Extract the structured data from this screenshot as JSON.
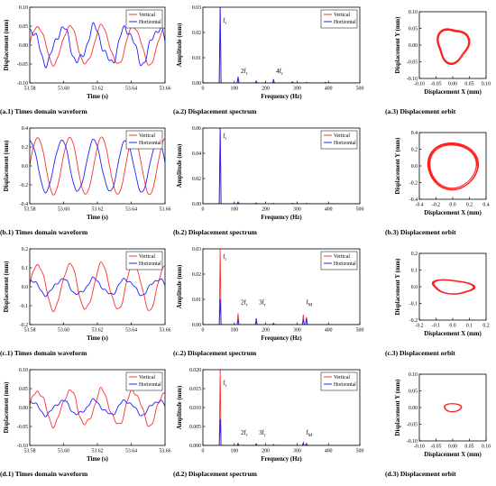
{
  "colors": {
    "vertical": "#ff3030",
    "horizontal": "#2020ff",
    "orbit": "#ff2020",
    "axis": "#000000"
  },
  "legend": {
    "vertical": "Vertical",
    "horizontal": "Horizontal"
  },
  "chart_data": [
    {
      "id": "a1",
      "type": "line",
      "caption": "(a.1) Times domain waveform",
      "xlabel": "Time (s)",
      "ylabel": "Displacement (mm)",
      "xlim": [
        53.58,
        53.66
      ],
      "ylim": [
        -0.1,
        0.1
      ],
      "xticks": [
        "53.58",
        "53.60",
        "53.62",
        "53.64",
        "53.66"
      ],
      "yticks": [
        "-0.10",
        "-0.05",
        "0.00",
        "0.05",
        "0.10"
      ],
      "period": 0.0189,
      "legend_pos": "top-right",
      "series": [
        {
          "name": "Vertical",
          "amplitude": 0.05,
          "phase": 0.0,
          "wobble": 0.004
        },
        {
          "name": "Horizontal",
          "amplitude": 0.045,
          "phase": 1.45,
          "wobble": 0.01
        }
      ]
    },
    {
      "id": "a2",
      "type": "spectrum",
      "caption": "(a.2) Displacement spectrum",
      "xlabel": "Frequency (Hz)",
      "ylabel": "Amplitude (mm)",
      "xlim": [
        0,
        500
      ],
      "ylim": [
        0,
        0.03
      ],
      "xticks": [
        "0",
        "100",
        "200",
        "300",
        "400",
        "500"
      ],
      "yticks": [
        "0.00",
        "0.01",
        "0.02",
        "0.03"
      ],
      "legend_pos": "top-right",
      "series": [
        {
          "name": "Vertical",
          "peaks": [
            [
              55,
              0.03
            ],
            [
              112,
              0.002
            ],
            [
              170,
              0.0008
            ],
            [
              225,
              0.0005
            ],
            [
              285,
              0.0004
            ],
            [
              330,
              0.0003
            ]
          ]
        },
        {
          "name": "Horizontal",
          "peaks": [
            [
              55,
              0.03
            ],
            [
              112,
              0.0025
            ],
            [
              170,
              0.0007
            ],
            [
              225,
              0.0015
            ],
            [
              285,
              0.0005
            ],
            [
              390,
              0.0003
            ]
          ]
        }
      ],
      "annotations": [
        {
          "text": "f",
          "sub": "r",
          "x": 55,
          "y": 0.024
        },
        {
          "text": "2f",
          "sub": "r",
          "x": 112,
          "y": 0.004
        },
        {
          "text": "4f",
          "sub": "r",
          "x": 225,
          "y": 0.004
        }
      ]
    },
    {
      "id": "a3",
      "type": "orbit",
      "caption": "(a.3) Displacement orbit",
      "xlabel": "Displacement X (mm)",
      "ylabel": "Displacement Y (mm)",
      "xlim": [
        -0.1,
        0.1
      ],
      "ylim": [
        -0.1,
        0.1
      ],
      "xticks": [
        "-0.10",
        "-0.05",
        "0.00",
        "0.05",
        "0.10"
      ],
      "yticks": [
        "-0.10",
        "-0.05",
        "0.00",
        "0.05",
        "0.10"
      ],
      "orbit": {
        "rx": 0.045,
        "ry": 0.05,
        "distortion": 0.13,
        "loops": 5
      }
    },
    {
      "id": "b1",
      "type": "line",
      "caption": "(b.1) Times domain waveform",
      "xlabel": "Time (s)",
      "ylabel": "Displacement (mm)",
      "xlim": [
        53.58,
        53.66
      ],
      "ylim": [
        -0.4,
        0.4
      ],
      "xticks": [
        "53.58",
        "53.60",
        "53.62",
        "53.64",
        "53.66"
      ],
      "yticks": [
        "-0.4",
        "-0.2",
        "0.0",
        "0.2",
        "0.4"
      ],
      "period": 0.0189,
      "legend_pos": "top-right",
      "series": [
        {
          "name": "Vertical",
          "amplitude": 0.3,
          "phase": 0.0,
          "wobble": 0.005
        },
        {
          "name": "Horizontal",
          "amplitude": 0.27,
          "phase": 1.55,
          "wobble": 0.01
        }
      ]
    },
    {
      "id": "b2",
      "type": "spectrum",
      "caption": "(b.2) Displacement spectrum",
      "xlabel": "Frequency (Hz)",
      "ylabel": "Amplitude (mm)",
      "xlim": [
        0,
        500
      ],
      "ylim": [
        0,
        0.06
      ],
      "xticks": [
        "0",
        "100",
        "200",
        "300",
        "400",
        "500"
      ],
      "yticks": [
        "0.00",
        "0.02",
        "0.04",
        "0.06"
      ],
      "legend_pos": "top-right",
      "series": [
        {
          "name": "Vertical",
          "peaks": [
            [
              55,
              0.06
            ],
            [
              112,
              0.0015
            ],
            [
              170,
              0.0008
            ],
            [
              225,
              0.0005
            ],
            [
              330,
              0.0004
            ]
          ]
        },
        {
          "name": "Horizontal",
          "peaks": [
            [
              55,
              0.06
            ],
            [
              112,
              0.0012
            ],
            [
              170,
              0.0006
            ],
            [
              285,
              0.0004
            ],
            [
              330,
              0.0003
            ]
          ]
        }
      ],
      "annotations": [
        {
          "text": "f",
          "sub": "r",
          "x": 55,
          "y": 0.052
        }
      ]
    },
    {
      "id": "b3",
      "type": "orbit",
      "caption": "(b.3) Displacement orbit",
      "xlabel": "Displacement X (mm)",
      "ylabel": "Displacement Y (mm)",
      "xlim": [
        -0.4,
        0.4
      ],
      "ylim": [
        -0.4,
        0.4
      ],
      "xticks": [
        "-0.4",
        "-0.2",
        "0.0",
        "0.2",
        "0.4"
      ],
      "yticks": [
        "-0.4",
        "-0.2",
        "0.0",
        "0.2",
        "0.4"
      ],
      "orbit": {
        "rx": 0.29,
        "ry": 0.27,
        "distortion": 0.03,
        "loops": 5
      }
    },
    {
      "id": "c1",
      "type": "line",
      "caption": "(c.1) Times domain waveform",
      "xlabel": "Time (s)",
      "ylabel": "Displacement (mm)",
      "xlim": [
        53.58,
        53.66
      ],
      "ylim": [
        -0.2,
        0.2
      ],
      "xticks": [
        "53.58",
        "53.60",
        "53.62",
        "53.64",
        "53.66"
      ],
      "yticks": [
        "-0.2",
        "-0.1",
        "0.0",
        "0.1",
        "0.2"
      ],
      "period": 0.0189,
      "legend_pos": "top-right",
      "series": [
        {
          "name": "Vertical",
          "amplitude": 0.12,
          "phase": 0.0,
          "wobble": 0.008
        },
        {
          "name": "Horizontal",
          "amplitude": 0.04,
          "phase": 1.5,
          "wobble": 0.008
        }
      ]
    },
    {
      "id": "c2",
      "type": "spectrum",
      "caption": "(c.2) Displacement spectrum",
      "xlabel": "Frequency (Hz)",
      "ylabel": "Amplitude (mm)",
      "xlim": [
        0,
        500
      ],
      "ylim": [
        0,
        0.03
      ],
      "xticks": [
        "0",
        "100",
        "200",
        "300",
        "400",
        "500"
      ],
      "yticks": [
        "0.00",
        "0.01",
        "0.02",
        "0.03"
      ],
      "legend_pos": "top-right",
      "series": [
        {
          "name": "Vertical",
          "peaks": [
            [
              55,
              0.03
            ],
            [
              112,
              0.0045
            ],
            [
              170,
              0.0012
            ],
            [
              225,
              0.0006
            ],
            [
              320,
              0.004
            ],
            [
              330,
              0.003
            ]
          ]
        },
        {
          "name": "Horizontal",
          "peaks": [
            [
              55,
              0.01
            ],
            [
              112,
              0.002
            ],
            [
              170,
              0.0025
            ],
            [
              225,
              0.0005
            ],
            [
              320,
              0.002
            ],
            [
              330,
              0.0025
            ]
          ]
        }
      ],
      "annotations": [
        {
          "text": "f",
          "sub": "r",
          "x": 55,
          "y": 0.026
        },
        {
          "text": "2f",
          "sub": "r",
          "x": 112,
          "y": 0.008
        },
        {
          "text": "3f",
          "sub": "r",
          "x": 170,
          "y": 0.008
        },
        {
          "text": "f",
          "sub": "M",
          "x": 320,
          "y": 0.008
        }
      ]
    },
    {
      "id": "c3",
      "type": "orbit",
      "caption": "(c.3) Displacement orbit",
      "xlabel": "Displacement X (mm)",
      "ylabel": "Displacement Y (mm)",
      "xlim": [
        -0.2,
        0.2
      ],
      "ylim": [
        -0.2,
        0.2
      ],
      "xticks": [
        "-0.2",
        "-0.1",
        "0.0",
        "0.1",
        "0.2"
      ],
      "yticks": [
        "-0.2",
        "-0.1",
        "0.0",
        "0.1",
        "0.2"
      ],
      "orbit": {
        "rx": 0.12,
        "ry": 0.04,
        "distortion": 0.1,
        "loops": 5,
        "tilt": -0.08
      }
    },
    {
      "id": "d1",
      "type": "line",
      "caption": "(d.1) Times domain waveform",
      "xlabel": "Time (s)",
      "ylabel": "Displacement (mm)",
      "xlim": [
        53.58,
        53.66
      ],
      "ylim": [
        -0.1,
        0.1
      ],
      "xticks": [
        "53.58",
        "53.60",
        "53.62",
        "53.64",
        "53.66"
      ],
      "yticks": [
        "-0.10",
        "-0.05",
        "0.00",
        "0.05",
        "0.10"
      ],
      "period": 0.0189,
      "legend_pos": "top-right",
      "series": [
        {
          "name": "Vertical",
          "amplitude": 0.045,
          "phase": 0.0,
          "wobble": 0.006
        },
        {
          "name": "Horizontal",
          "amplitude": 0.018,
          "phase": 1.5,
          "wobble": 0.004
        }
      ]
    },
    {
      "id": "d2",
      "type": "spectrum",
      "caption": "(d.2) Displacement spectrum",
      "xlabel": "Frequency (Hz)",
      "ylabel": "Amplitude (mm)",
      "xlim": [
        0,
        500
      ],
      "ylim": [
        0,
        0.02
      ],
      "xticks": [
        "0",
        "100",
        "200",
        "300",
        "400",
        "500"
      ],
      "yticks": [
        "0.000",
        "0.005",
        "0.010",
        "0.015",
        "0.020"
      ],
      "legend_pos": "top-right",
      "series": [
        {
          "name": "Vertical",
          "peaks": [
            [
              55,
              0.02
            ],
            [
              112,
              0.0006
            ],
            [
              170,
              0.0005
            ],
            [
              225,
              0.0003
            ],
            [
              320,
              0.0008
            ],
            [
              330,
              0.0006
            ]
          ]
        },
        {
          "name": "Horizontal",
          "peaks": [
            [
              55,
              0.007
            ],
            [
              112,
              0.0004
            ],
            [
              170,
              0.0003
            ],
            [
              320,
              0.0006
            ],
            [
              330,
              0.0004
            ]
          ]
        }
      ],
      "annotations": [
        {
          "text": "f",
          "sub": "r",
          "x": 55,
          "y": 0.016
        },
        {
          "text": "2f",
          "sub": "r",
          "x": 112,
          "y": 0.0028
        },
        {
          "text": "3f",
          "sub": "r",
          "x": 170,
          "y": 0.0028
        },
        {
          "text": "f",
          "sub": "M",
          "x": 320,
          "y": 0.0028
        }
      ]
    },
    {
      "id": "d3",
      "type": "orbit",
      "caption": "(d.3) Displacement orbit",
      "xlabel": "Displacement X (mm)",
      "ylabel": "Displacement Y (mm)",
      "xlim": [
        -0.1,
        0.1
      ],
      "ylim": [
        -0.1,
        0.1
      ],
      "xticks": [
        "-0.10",
        "-0.05",
        "0.00",
        "0.05",
        "0.10"
      ],
      "yticks": [
        "-0.10",
        "-0.05",
        "0.00",
        "0.05",
        "0.10"
      ],
      "orbit": {
        "rx": 0.025,
        "ry": 0.012,
        "distortion": 0.05,
        "loops": 4
      }
    }
  ]
}
